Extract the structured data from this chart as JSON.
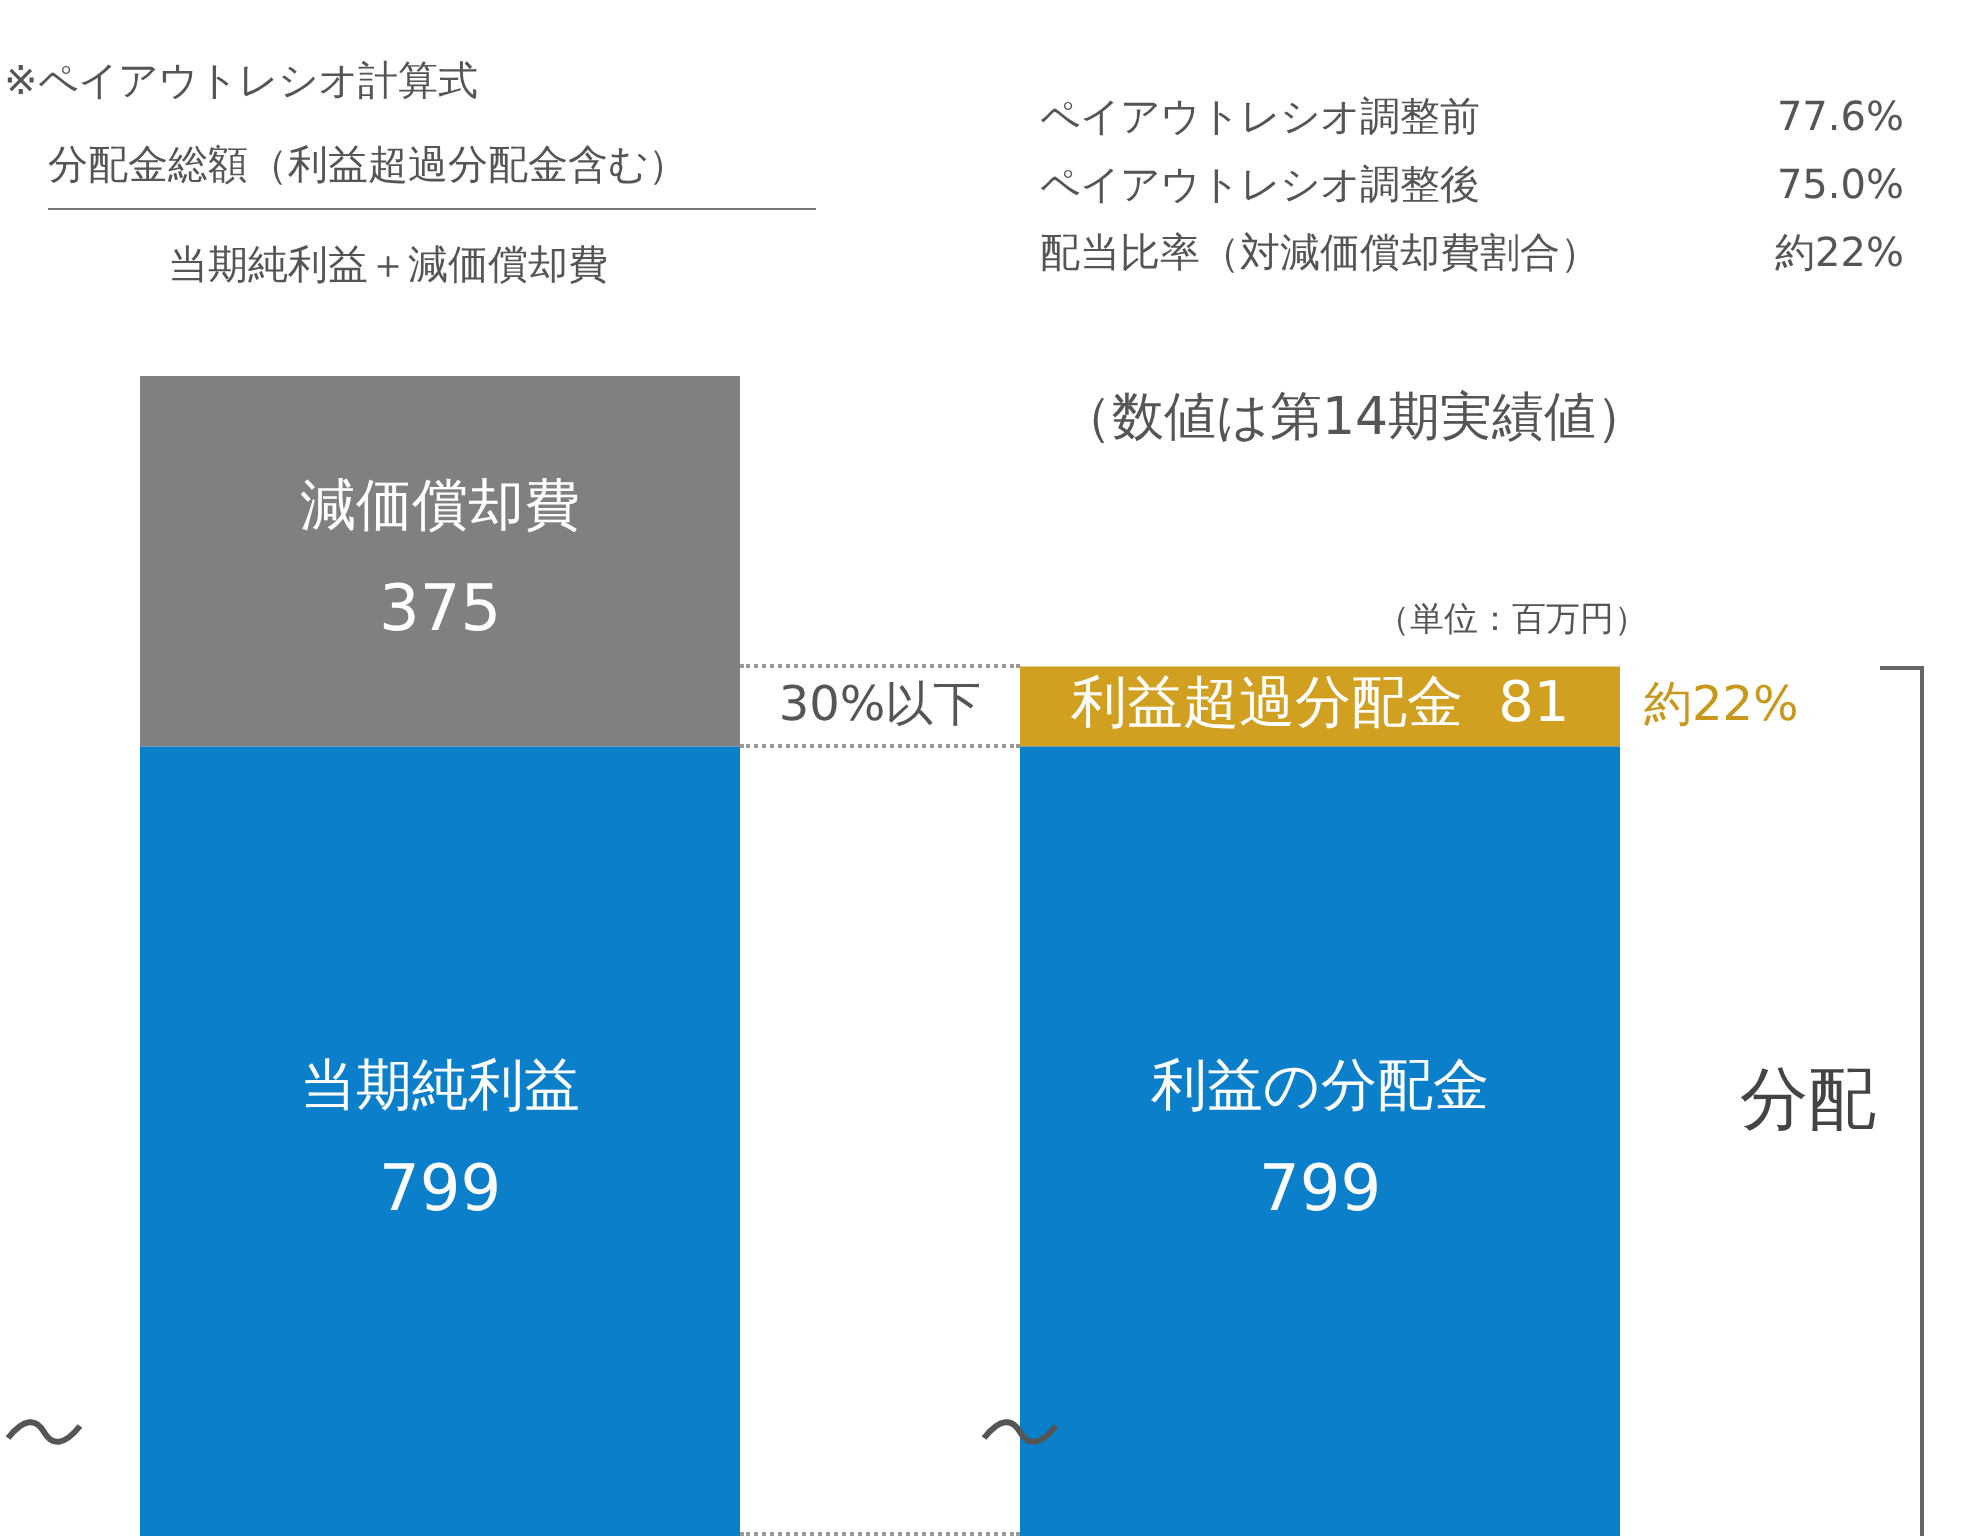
{
  "chart_data": {
    "type": "bar",
    "stacked": true,
    "tick_labels": false,
    "categories": [
      null,
      null
    ],
    "series": [
      {
        "color": "#0b7fc9",
        "values": [
          799,
          799
        ],
        "value_labels": [
          "当期純利益\n799",
          "利益の分配金\n799"
        ]
      },
      {
        "colors": [
          "#808080",
          "#d1a021"
        ],
        "values": [
          375,
          81
        ],
        "value_labels": [
          "減価償却費\n375",
          "利益超過分配金  81"
        ]
      }
    ],
    "annotations": [
      "※ペイアウトレシオ計算式",
      "分配金総額（利益超過分配金含む）",
      "当期純利益＋減価償却費",
      "ペイアウトレシオ調整前",
      "77.6%",
      "ペイアウトレシオ調整後",
      "75.0%",
      "配当比率（対減価償却費割合）",
      "約22%",
      "（数値は第14期実績値）",
      "（単位：百万円）",
      "30%以下",
      "約22%",
      "分配"
    ]
  }
}
